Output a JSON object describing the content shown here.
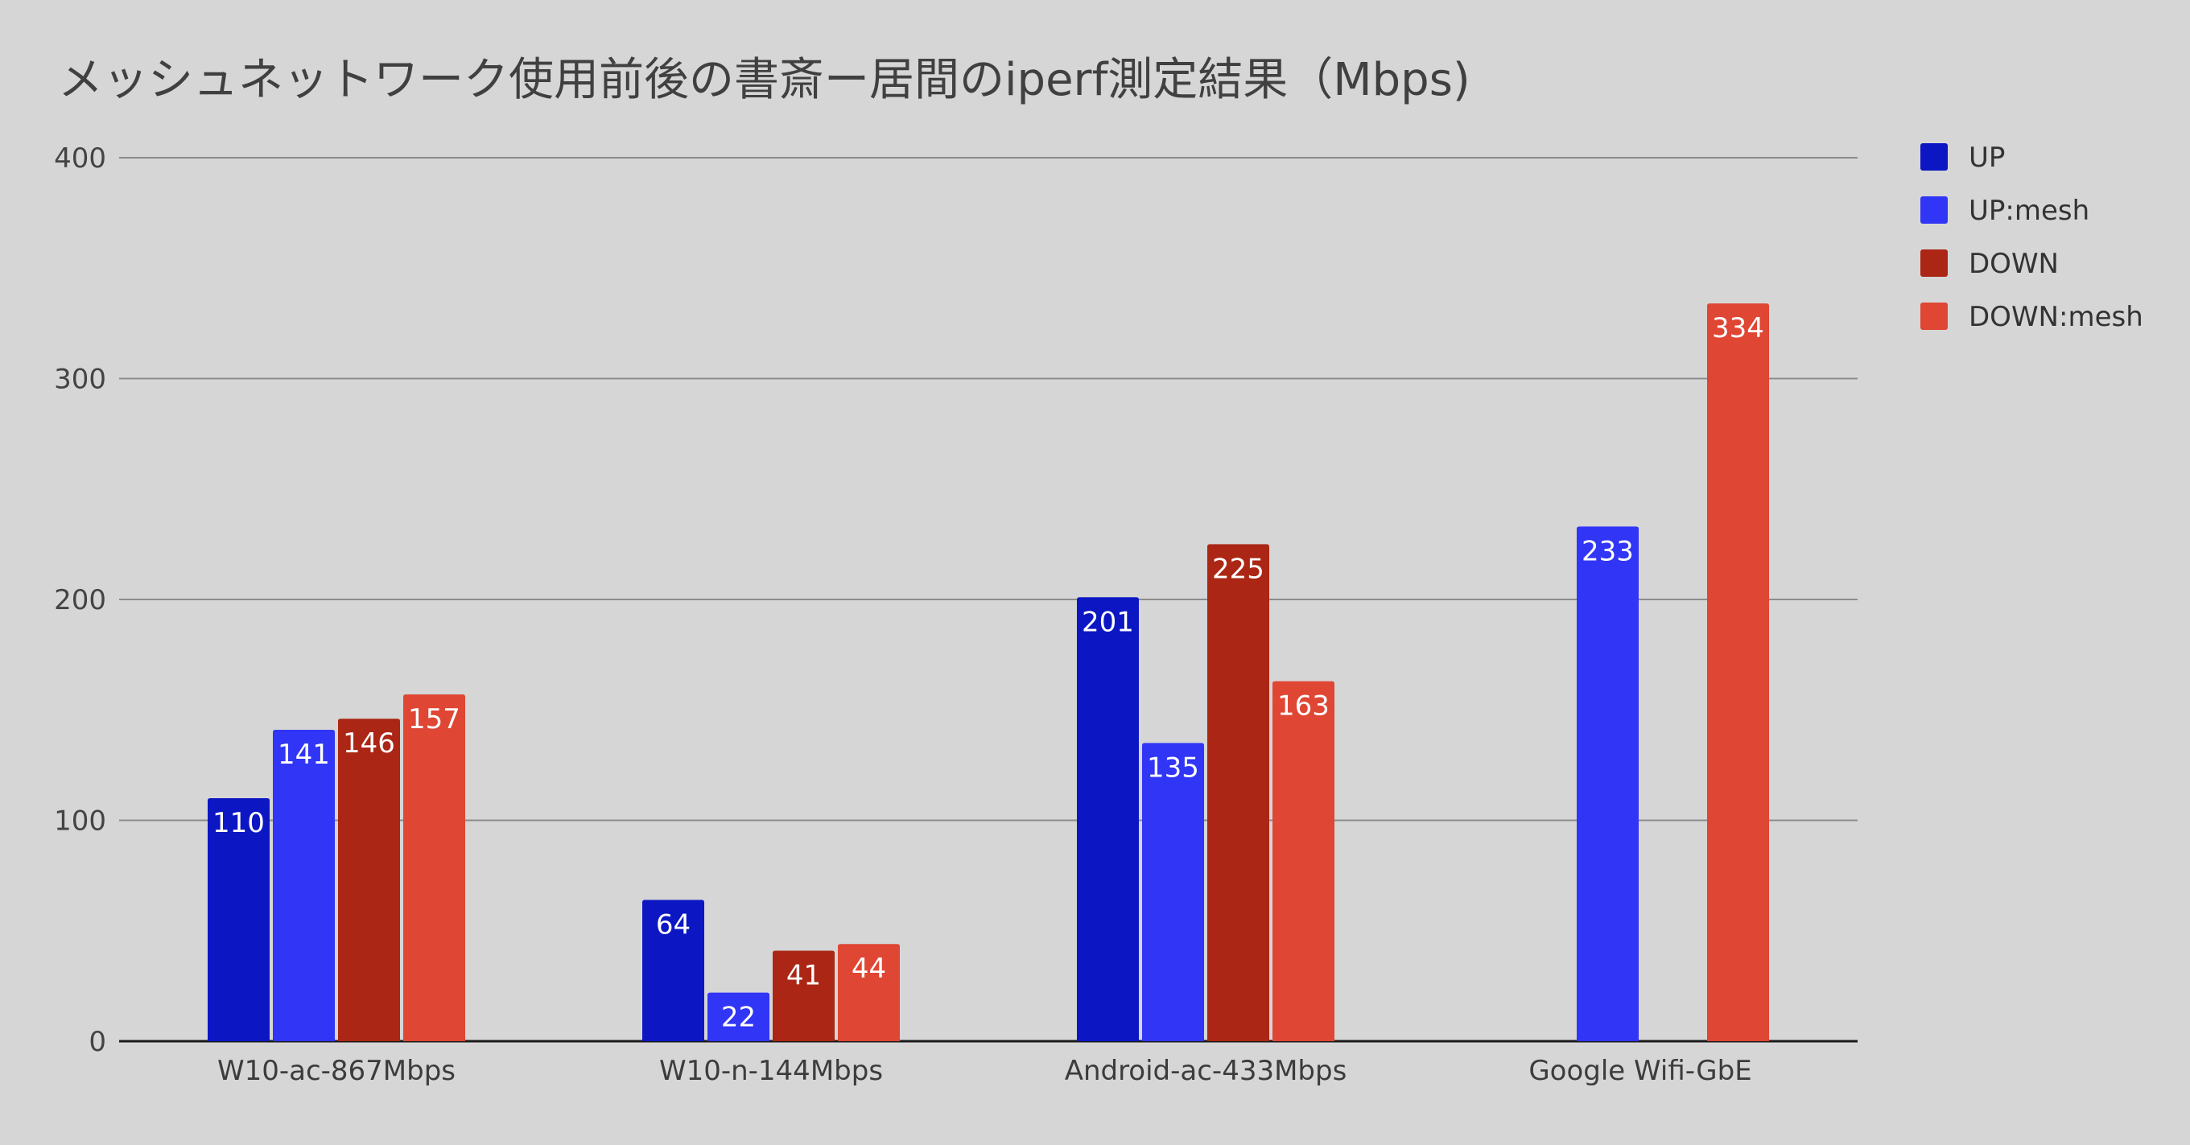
{
  "chart_data": {
    "type": "bar",
    "title": "メッシュネットワーク使用前後の書斎ー居間のiperf測定結果（Mbps)",
    "xlabel": "",
    "ylabel": "",
    "ylim": [
      0,
      400
    ],
    "yticks": [
      0,
      100,
      200,
      300,
      400
    ],
    "grid": true,
    "legend_position": "right",
    "categories": [
      "W10-ac-867Mbps",
      "W10-n-144Mbps",
      "Android-ac-433Mbps",
      "Google Wifi-GbE"
    ],
    "series": [
      {
        "name": "UP",
        "color": "#0c17c3",
        "values": [
          110,
          64,
          201,
          null
        ]
      },
      {
        "name": "UP:mesh",
        "color": "#3135f5",
        "values": [
          141,
          22,
          135,
          233
        ]
      },
      {
        "name": "DOWN",
        "color": "#ab2614",
        "values": [
          146,
          41,
          225,
          null
        ]
      },
      {
        "name": "DOWN:mesh",
        "color": "#df4634",
        "values": [
          157,
          44,
          163,
          334
        ]
      }
    ]
  }
}
